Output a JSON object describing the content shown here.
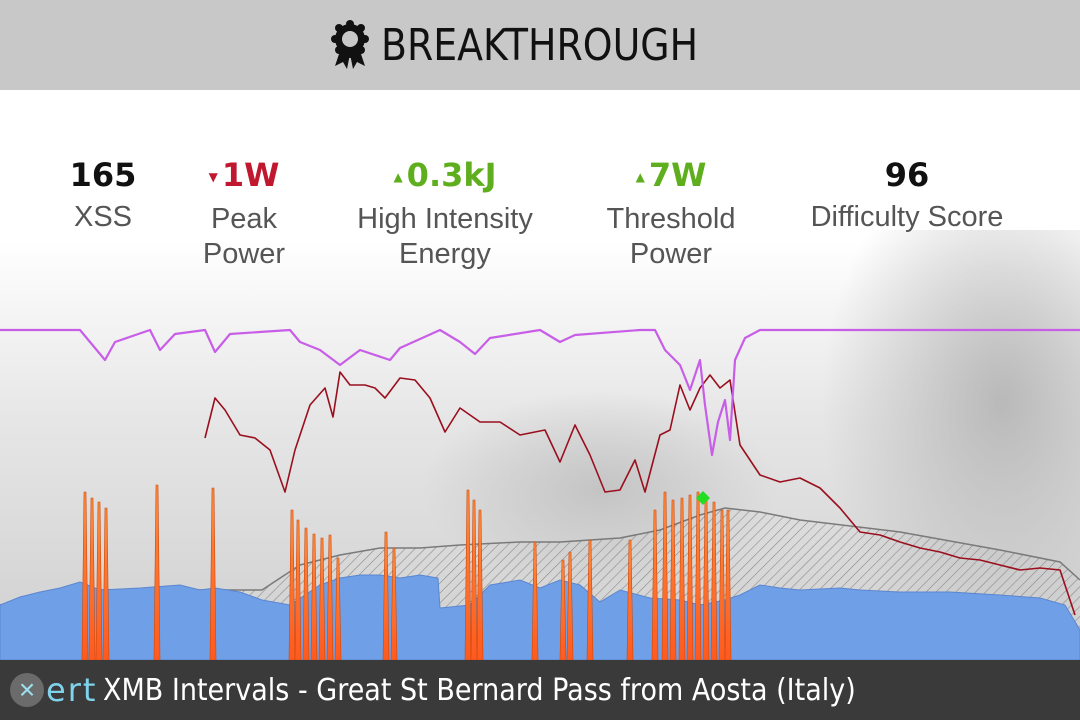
{
  "header": {
    "title": "BREAKTHROUGH",
    "icon": "ribbon-badge-icon"
  },
  "stats": [
    {
      "value": "165",
      "label_line1": "XSS",
      "label_line2": "",
      "trend": "none"
    },
    {
      "value": "1W",
      "label_line1": "Peak",
      "label_line2": "Power",
      "trend": "down"
    },
    {
      "value": "0.3kJ",
      "label_line1": "High Intensity",
      "label_line2": "Energy",
      "trend": "up"
    },
    {
      "value": "7W",
      "label_line1": "Threshold",
      "label_line2": "Power",
      "trend": "up"
    },
    {
      "value": "96",
      "label_line1": "Difficulty Score",
      "label_line2": "",
      "trend": "none"
    }
  ],
  "colors": {
    "header_bg": "#c8c8c8",
    "trend_down": "#c0182f",
    "trend_up": "#5fae1e",
    "power_area": "#6f9fe6",
    "mpa_line": "#c85ee8",
    "heart_rate_line": "#9a0f1e",
    "breakthrough_marker": "#22dd22",
    "footer_bg": "#3a3a3a",
    "logo": "#7fd4ec"
  },
  "footer": {
    "logo_mark": "×",
    "logo_text": "ert",
    "workout_name": "XMB Intervals - Great St Bernard Pass from Aosta (Italy)"
  },
  "chart_data": {
    "type": "area",
    "x_range": [
      0,
      1080
    ],
    "y_range": [
      0,
      330
    ],
    "grid": false,
    "legend": "none",
    "series": [
      {
        "kind": "mpa-line",
        "points": [
          [
            0,
            330
          ],
          [
            80,
            330
          ],
          [
            90,
            318
          ],
          [
            105,
            300
          ],
          [
            115,
            318
          ],
          [
            150,
            330
          ],
          [
            160,
            310
          ],
          [
            175,
            326
          ],
          [
            205,
            330
          ],
          [
            215,
            308
          ],
          [
            230,
            326
          ],
          [
            290,
            330
          ],
          [
            300,
            318
          ],
          [
            320,
            310
          ],
          [
            340,
            295
          ],
          [
            360,
            310
          ],
          [
            390,
            300
          ],
          [
            400,
            312
          ],
          [
            440,
            330
          ],
          [
            460,
            318
          ],
          [
            475,
            306
          ],
          [
            490,
            322
          ],
          [
            540,
            330
          ],
          [
            560,
            318
          ],
          [
            575,
            325
          ],
          [
            640,
            330
          ],
          [
            655,
            330
          ],
          [
            665,
            310
          ],
          [
            680,
            295
          ],
          [
            690,
            270
          ],
          [
            700,
            300
          ],
          [
            705,
            255
          ],
          [
            712,
            205
          ],
          [
            718,
            238
          ],
          [
            725,
            260
          ],
          [
            730,
            220
          ],
          [
            735,
            300
          ],
          [
            745,
            322
          ],
          [
            760,
            330
          ],
          [
            1080,
            330
          ]
        ]
      },
      {
        "kind": "heart-rate-line",
        "points": [
          [
            205,
            222
          ],
          [
            215,
            262
          ],
          [
            225,
            250
          ],
          [
            240,
            225
          ],
          [
            255,
            222
          ],
          [
            270,
            210
          ],
          [
            285,
            168
          ],
          [
            295,
            210
          ],
          [
            310,
            255
          ],
          [
            325,
            272
          ],
          [
            333,
            243
          ],
          [
            340,
            288
          ],
          [
            350,
            275
          ],
          [
            365,
            275
          ],
          [
            375,
            272
          ],
          [
            385,
            262
          ],
          [
            400,
            282
          ],
          [
            415,
            280
          ],
          [
            430,
            262
          ],
          [
            445,
            228
          ],
          [
            460,
            252
          ],
          [
            480,
            238
          ],
          [
            500,
            238
          ],
          [
            520,
            225
          ],
          [
            545,
            230
          ],
          [
            560,
            198
          ],
          [
            575,
            235
          ],
          [
            590,
            205
          ],
          [
            605,
            168
          ],
          [
            620,
            170
          ],
          [
            635,
            200
          ],
          [
            645,
            168
          ],
          [
            660,
            225
          ],
          [
            670,
            230
          ],
          [
            680,
            275
          ],
          [
            690,
            250
          ],
          [
            700,
            272
          ],
          [
            710,
            285
          ],
          [
            720,
            272
          ],
          [
            730,
            280
          ],
          [
            740,
            215
          ],
          [
            760,
            185
          ],
          [
            780,
            178
          ],
          [
            800,
            182
          ],
          [
            820,
            172
          ],
          [
            840,
            152
          ],
          [
            860,
            128
          ],
          [
            880,
            125
          ],
          [
            900,
            118
          ],
          [
            920,
            112
          ],
          [
            940,
            108
          ],
          [
            960,
            102
          ],
          [
            980,
            100
          ],
          [
            1000,
            95
          ],
          [
            1020,
            90
          ],
          [
            1040,
            92
          ],
          [
            1060,
            90
          ],
          [
            1075,
            45
          ]
        ]
      },
      {
        "kind": "power-area",
        "points": [
          [
            0,
            55
          ],
          [
            20,
            63
          ],
          [
            40,
            68
          ],
          [
            60,
            72
          ],
          [
            80,
            78
          ],
          [
            100,
            70
          ],
          [
            140,
            72
          ],
          [
            180,
            75
          ],
          [
            200,
            70
          ],
          [
            215,
            72
          ],
          [
            240,
            68
          ],
          [
            262,
            60
          ],
          [
            290,
            55
          ],
          [
            320,
            75
          ],
          [
            340,
            82
          ],
          [
            360,
            85
          ],
          [
            380,
            85
          ],
          [
            400,
            82
          ],
          [
            420,
            85
          ],
          [
            438,
            82
          ],
          [
            440,
            52
          ],
          [
            470,
            55
          ],
          [
            490,
            75
          ],
          [
            520,
            80
          ],
          [
            540,
            72
          ],
          [
            560,
            80
          ],
          [
            580,
            75
          ],
          [
            600,
            58
          ],
          [
            620,
            70
          ],
          [
            650,
            62
          ],
          [
            680,
            60
          ],
          [
            700,
            55
          ],
          [
            725,
            60
          ],
          [
            740,
            65
          ],
          [
            760,
            75
          ],
          [
            780,
            72
          ],
          [
            800,
            70
          ],
          [
            840,
            72
          ],
          [
            860,
            70
          ],
          [
            900,
            68
          ],
          [
            950,
            68
          ],
          [
            1000,
            65
          ],
          [
            1040,
            62
          ],
          [
            1065,
            55
          ],
          [
            1080,
            30
          ]
        ]
      },
      {
        "kind": "threshold-band",
        "points": [
          [
            0,
            55
          ],
          [
            60,
            70
          ],
          [
            100,
            70
          ],
          [
            262,
            70
          ],
          [
            300,
            95
          ],
          [
            340,
            105
          ],
          [
            380,
            112
          ],
          [
            420,
            112
          ],
          [
            460,
            115
          ],
          [
            520,
            118
          ],
          [
            560,
            118
          ],
          [
            620,
            122
          ],
          [
            660,
            130
          ],
          [
            700,
            145
          ],
          [
            725,
            152
          ],
          [
            760,
            148
          ],
          [
            800,
            140
          ],
          [
            900,
            128
          ],
          [
            1000,
            110
          ],
          [
            1060,
            98
          ],
          [
            1080,
            80
          ]
        ]
      }
    ],
    "interval_spikes": [
      {
        "x": 85,
        "peak": 168
      },
      {
        "x": 92,
        "peak": 162
      },
      {
        "x": 99,
        "peak": 158
      },
      {
        "x": 106,
        "peak": 152
      },
      {
        "x": 157,
        "peak": 175
      },
      {
        "x": 213,
        "peak": 172
      },
      {
        "x": 292,
        "peak": 150
      },
      {
        "x": 298,
        "peak": 140
      },
      {
        "x": 306,
        "peak": 132
      },
      {
        "x": 314,
        "peak": 126
      },
      {
        "x": 322,
        "peak": 122
      },
      {
        "x": 330,
        "peak": 125
      },
      {
        "x": 338,
        "peak": 102
      },
      {
        "x": 386,
        "peak": 128
      },
      {
        "x": 394,
        "peak": 112
      },
      {
        "x": 468,
        "peak": 170
      },
      {
        "x": 474,
        "peak": 160
      },
      {
        "x": 480,
        "peak": 150
      },
      {
        "x": 535,
        "peak": 118
      },
      {
        "x": 563,
        "peak": 100
      },
      {
        "x": 570,
        "peak": 108
      },
      {
        "x": 590,
        "peak": 120
      },
      {
        "x": 630,
        "peak": 120
      },
      {
        "x": 655,
        "peak": 150
      },
      {
        "x": 665,
        "peak": 168
      },
      {
        "x": 673,
        "peak": 160
      },
      {
        "x": 682,
        "peak": 162
      },
      {
        "x": 690,
        "peak": 165
      },
      {
        "x": 698,
        "peak": 168
      },
      {
        "x": 706,
        "peak": 162
      },
      {
        "x": 714,
        "peak": 158
      },
      {
        "x": 722,
        "peak": 150
      },
      {
        "x": 728,
        "peak": 150
      }
    ],
    "breakthrough_point": {
      "x": 703,
      "y": 162
    }
  }
}
